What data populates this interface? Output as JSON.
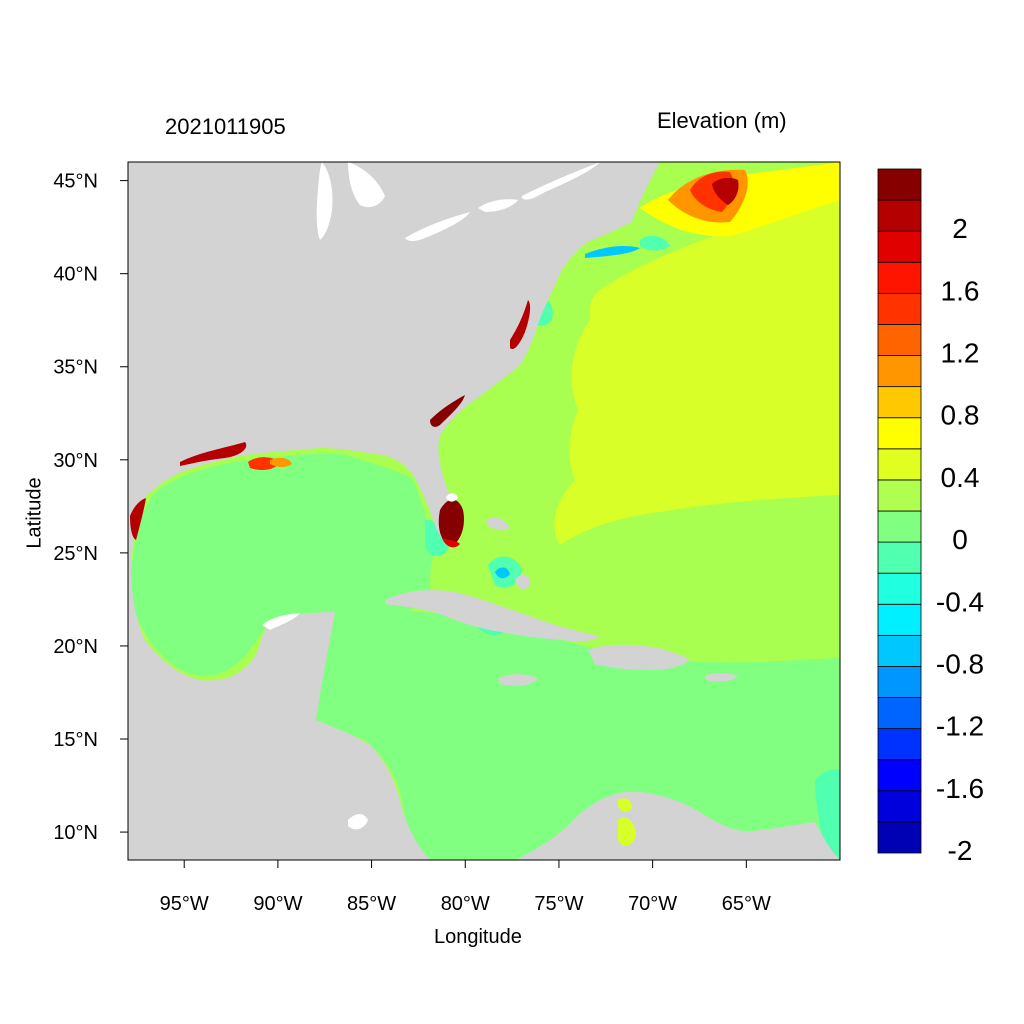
{
  "title_left": "2021011905",
  "title_right": "Elevation (m)",
  "xlabel": "Longitude",
  "ylabel": "Latitude",
  "map": {
    "lon_range": [
      -98,
      -60
    ],
    "lat_range": [
      8.5,
      46
    ],
    "land_color": "#d3d3d3",
    "water_body_color": "#ffffff",
    "x_ticks": [
      {
        "value": -95,
        "label": "95°W"
      },
      {
        "value": -90,
        "label": "90°W"
      },
      {
        "value": -85,
        "label": "85°W"
      },
      {
        "value": -80,
        "label": "80°W"
      },
      {
        "value": -75,
        "label": "75°W"
      },
      {
        "value": -70,
        "label": "70°W"
      },
      {
        "value": -65,
        "label": "65°W"
      }
    ],
    "y_ticks": [
      {
        "value": 45,
        "label": "45°N"
      },
      {
        "value": 40,
        "label": "40°N"
      },
      {
        "value": 35,
        "label": "35°N"
      },
      {
        "value": 30,
        "label": "30°N"
      },
      {
        "value": 25,
        "label": "25°N"
      },
      {
        "value": 20,
        "label": "20°N"
      },
      {
        "value": 15,
        "label": "15°N"
      },
      {
        "value": 10,
        "label": "10°N"
      }
    ]
  },
  "colorbar": {
    "colors": [
      "#0000b4",
      "#0000dc",
      "#0000ff",
      "#0032ff",
      "#0064ff",
      "#0096ff",
      "#00c8ff",
      "#00f0ff",
      "#20ffe0",
      "#50ffb0",
      "#80ff80",
      "#b0ff50",
      "#e0ff20",
      "#ffff00",
      "#ffc800",
      "#ff9600",
      "#ff6400",
      "#ff3200",
      "#ff1400",
      "#e10000",
      "#b40000",
      "#870000"
    ],
    "labels": [
      "2",
      "1.6",
      "1.2",
      "0.8",
      "0.4",
      "0",
      "-0.4",
      "-0.8",
      "-1.2",
      "-1.6",
      "-2"
    ]
  }
}
